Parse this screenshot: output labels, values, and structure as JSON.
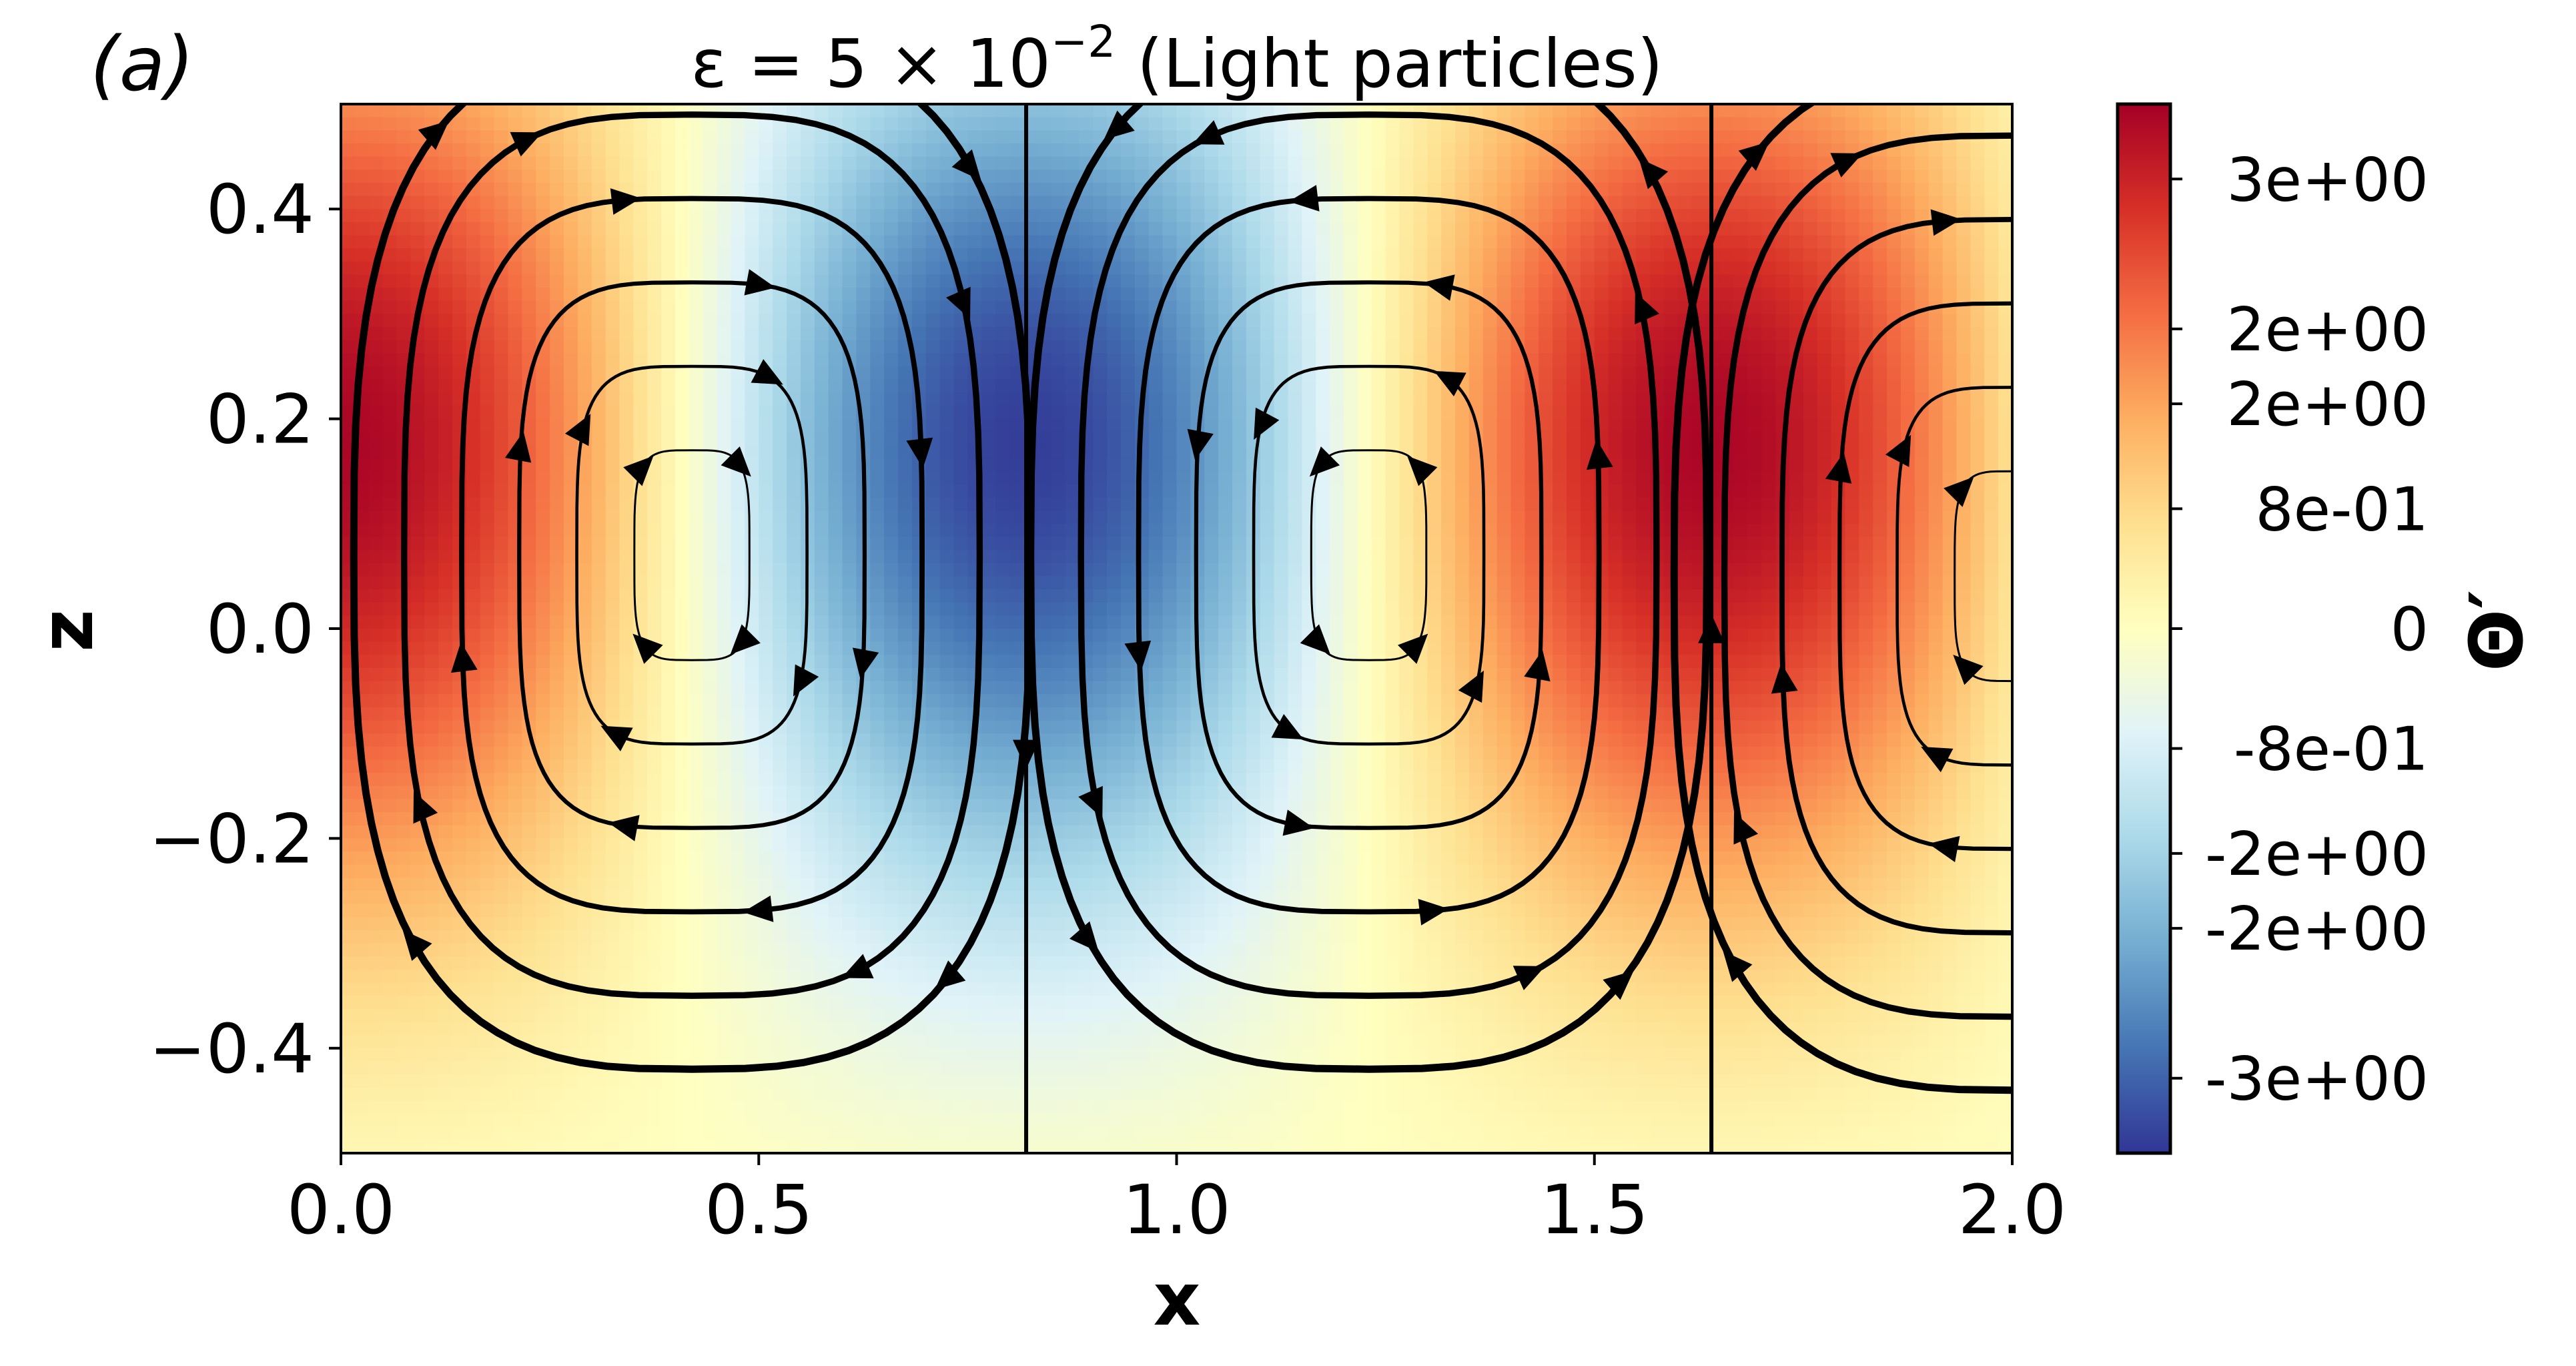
{
  "panel_label": "(a)",
  "chart_data": {
    "type": "heatmap",
    "title_parts": {
      "pre": "ε = 5 × 10",
      "sup": "−2",
      "post": " (Light particles)"
    },
    "xlabel": "x",
    "ylabel": "z",
    "xlim": [
      0.0,
      2.0
    ],
    "ylim": [
      -0.5,
      0.5
    ],
    "xticks": [
      0.0,
      0.5,
      1.0,
      1.5,
      2.0
    ],
    "xticklabels": [
      "0.0",
      "0.5",
      "1.0",
      "1.5",
      "2.0"
    ],
    "yticks": [
      -0.4,
      -0.2,
      0.0,
      0.2,
      0.4
    ],
    "yticklabels": [
      "−0.4",
      "−0.2",
      "0.0",
      "0.2",
      "0.4"
    ],
    "colorbar": {
      "label": "Θ′",
      "colormap": "RdYlBu_r",
      "range": [
        -3.5,
        3.5
      ],
      "ticks": [
        3.0,
        2.0,
        1.5,
        0.8,
        0.0,
        -0.8,
        -1.5,
        -2.0,
        -3.0
      ],
      "ticklabels": [
        "3e+00",
        "2e+00",
        "2e+00",
        "8e-01",
        "0",
        "-8e-01",
        "-2e+00",
        "-2e+00",
        "-3e+00"
      ]
    },
    "field": {
      "name": "Θ′",
      "hot_columns_x": [
        0.0,
        1.64
      ],
      "cold_column_x": 0.82,
      "peak_z": 0.2,
      "amplitude": 3.5
    },
    "streamlines": {
      "cells": [
        {
          "center": [
            0.42,
            0.07
          ],
          "direction": "clockwise"
        },
        {
          "center": [
            1.23,
            0.07
          ],
          "direction": "counterclockwise"
        },
        {
          "center": [
            2.0,
            0.05
          ],
          "direction": "clockwise"
        }
      ],
      "downflow_x": 0.82,
      "upflow_x": 1.64
    }
  }
}
